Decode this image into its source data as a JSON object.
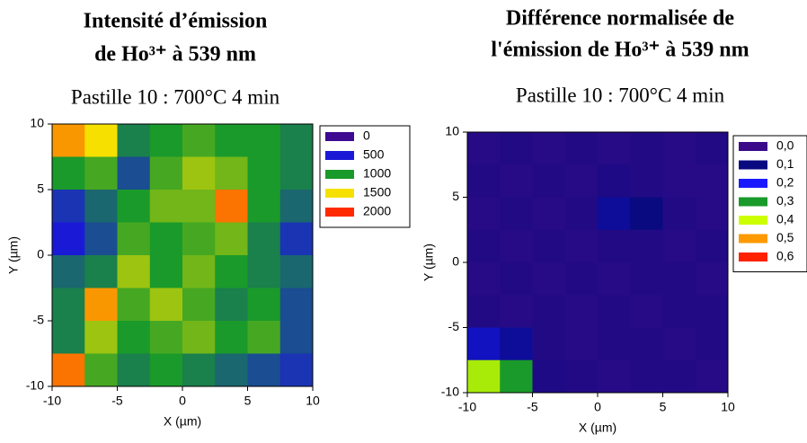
{
  "chart_data": [
    {
      "type": "contour",
      "title": [
        "Intensité d’émission",
        "de Ho³⁺ à 539 nm"
      ],
      "subtitle": "Pastille 10 : 700°C 4 min",
      "xlabel": "X (µm)",
      "ylabel": "Y (µm)",
      "xlim": [
        -10,
        10
      ],
      "ylim": [
        -10,
        10
      ],
      "xticks": [
        -10,
        -5,
        0,
        5,
        10
      ],
      "yticks": [
        -10,
        -5,
        0,
        5,
        10
      ],
      "x": [
        -8.75,
        -6.25,
        -3.75,
        -1.25,
        1.25,
        3.75,
        6.25,
        8.75
      ],
      "y": [
        8.75,
        6.25,
        3.75,
        1.25,
        -1.25,
        -3.75,
        -6.25,
        -8.75
      ],
      "z": [
        [
          1700,
          1500,
          900,
          1000,
          1100,
          1000,
          1000,
          900
        ],
        [
          1000,
          1100,
          700,
          1100,
          1300,
          1200,
          1000,
          900
        ],
        [
          600,
          800,
          1000,
          1200,
          1200,
          1800,
          1000,
          800
        ],
        [
          500,
          700,
          1100,
          1000,
          1100,
          1200,
          900,
          600
        ],
        [
          800,
          900,
          1300,
          1000,
          1200,
          1000,
          900,
          800
        ],
        [
          900,
          1700,
          1100,
          1300,
          1100,
          900,
          1000,
          700
        ],
        [
          900,
          1300,
          1000,
          1100,
          1200,
          1000,
          1100,
          700
        ],
        [
          1800,
          1100,
          900,
          1000,
          900,
          800,
          700,
          600
        ]
      ],
      "levels": [
        0,
        500,
        1000,
        1500,
        2000
      ],
      "colors": [
        "#3d0a91",
        "#1a1ad6",
        "#1a9a2a",
        "#f5e000",
        "#ff2a00"
      ]
    },
    {
      "type": "contour",
      "title": [
        "Différence normalisée de",
        "l'émission de Ho³⁺ à 539 nm"
      ],
      "subtitle": "Pastille 10 : 700°C 4 min",
      "xlabel": "X (µm)",
      "ylabel": "Y (µm)",
      "xlim": [
        -10,
        10
      ],
      "ylim": [
        -10,
        10
      ],
      "xticks": [
        -10,
        -5,
        0,
        5,
        10
      ],
      "yticks": [
        -10,
        -5,
        0,
        5,
        10
      ],
      "x": [
        -8.75,
        -6.25,
        -3.75,
        -1.25,
        1.25,
        3.75,
        6.25,
        8.75
      ],
      "y": [
        8.75,
        6.25,
        3.75,
        1.25,
        -1.25,
        -3.75,
        -6.25,
        -8.75
      ],
      "z": [
        [
          0.04,
          0.05,
          0.04,
          0.05,
          0.04,
          0.05,
          0.04,
          0.05
        ],
        [
          0.05,
          0.04,
          0.05,
          0.04,
          0.06,
          0.05,
          0.04,
          0.04
        ],
        [
          0.04,
          0.05,
          0.04,
          0.05,
          0.12,
          0.1,
          0.05,
          0.04
        ],
        [
          0.05,
          0.04,
          0.05,
          0.04,
          0.05,
          0.05,
          0.04,
          0.05
        ],
        [
          0.04,
          0.05,
          0.04,
          0.05,
          0.04,
          0.05,
          0.05,
          0.04
        ],
        [
          0.05,
          0.04,
          0.05,
          0.04,
          0.05,
          0.04,
          0.05,
          0.05
        ],
        [
          0.15,
          0.12,
          0.05,
          0.04,
          0.05,
          0.05,
          0.04,
          0.05
        ],
        [
          0.38,
          0.3,
          0.06,
          0.05,
          0.04,
          0.05,
          0.05,
          0.04
        ]
      ],
      "levels": [
        {
          "value": 0,
          "label": "0,0"
        },
        {
          "value": 0.1,
          "label": "0,1"
        },
        {
          "value": 0.2,
          "label": "0,2"
        },
        {
          "value": 0.3,
          "label": "0,3"
        },
        {
          "value": 0.4,
          "label": "0,4"
        },
        {
          "value": 0.5,
          "label": "0,5"
        },
        {
          "value": 0.6,
          "label": "0,6"
        }
      ],
      "colors": [
        "#3a0a8a",
        "#0a0a80",
        "#1a1aff",
        "#1a9a2a",
        "#ccff00",
        "#ff9900",
        "#ff2200"
      ]
    }
  ]
}
